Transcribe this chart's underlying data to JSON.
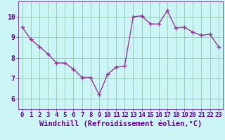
{
  "x": [
    0,
    1,
    2,
    3,
    4,
    5,
    6,
    7,
    8,
    9,
    10,
    11,
    12,
    13,
    14,
    15,
    16,
    17,
    18,
    19,
    20,
    21,
    22,
    23
  ],
  "y": [
    9.5,
    8.9,
    8.55,
    8.2,
    7.75,
    7.75,
    7.45,
    7.05,
    7.05,
    6.2,
    7.2,
    7.55,
    7.6,
    10.0,
    10.05,
    9.65,
    9.65,
    10.3,
    9.45,
    9.5,
    9.25,
    9.1,
    9.15,
    8.55
  ],
  "xlabel": "Windchill (Refroidissement éolien,°C)",
  "xlim": [
    -0.5,
    23.5
  ],
  "ylim": [
    5.5,
    10.75
  ],
  "yticks": [
    6,
    7,
    8,
    9,
    10
  ],
  "xticks": [
    0,
    1,
    2,
    3,
    4,
    5,
    6,
    7,
    8,
    9,
    10,
    11,
    12,
    13,
    14,
    15,
    16,
    17,
    18,
    19,
    20,
    21,
    22,
    23
  ],
  "line_color": "#993399",
  "marker": "+",
  "bg_color": "#ccf5f5",
  "plot_bg": "#ccf5f5",
  "grid_color": "#99ccbb",
  "axis_color": "#660099",
  "tick_color": "#660099",
  "xlabel_fontsize": 7.5,
  "tick_fontsize": 6.5,
  "line_width": 1.0,
  "marker_size": 4.5,
  "marker_edge_width": 1.0
}
